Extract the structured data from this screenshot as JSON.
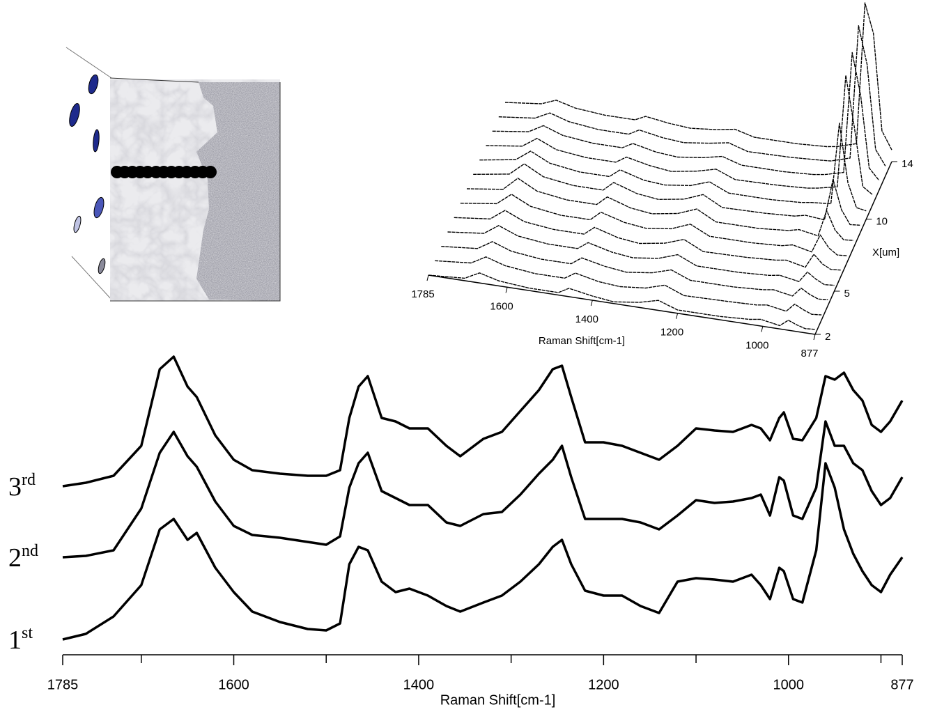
{
  "chart_data": [
    {
      "type": "line",
      "xlabel": "Raman Shift[cm-1]",
      "x": [
        1785,
        1760,
        1730,
        1700,
        1680,
        1665,
        1650,
        1640,
        1620,
        1600,
        1580,
        1550,
        1520,
        1500,
        1485,
        1475,
        1465,
        1455,
        1440,
        1425,
        1410,
        1390,
        1370,
        1355,
        1330,
        1310,
        1290,
        1270,
        1255,
        1245,
        1235,
        1220,
        1200,
        1180,
        1160,
        1140,
        1120,
        1100,
        1080,
        1060,
        1040,
        1030,
        1020,
        1010,
        1005,
        995,
        985,
        970,
        960,
        950,
        940,
        930,
        920,
        910,
        900,
        890,
        877
      ],
      "xlim": [
        1785,
        877
      ],
      "xticks": [
        1785,
        1600,
        1400,
        1200,
        1000,
        877
      ],
      "xminorticks": [
        1700,
        1500,
        1300,
        1100,
        900
      ],
      "ylim": [
        0,
        440
      ],
      "series": [
        {
          "name": "3rd",
          "color": "#000000",
          "values": [
            242,
            247,
            257,
            300,
            410,
            428,
            385,
            370,
            315,
            280,
            265,
            260,
            257,
            257,
            265,
            340,
            385,
            400,
            340,
            335,
            325,
            325,
            300,
            285,
            310,
            320,
            350,
            380,
            410,
            415,
            370,
            305,
            305,
            300,
            290,
            280,
            300,
            325,
            322,
            320,
            330,
            325,
            308,
            340,
            348,
            310,
            308,
            340,
            400,
            395,
            405,
            380,
            365,
            330,
            320,
            335,
            365
          ]
        },
        {
          "name": "2nd",
          "color": "#000000",
          "values": [
            140,
            142,
            150,
            210,
            290,
            320,
            285,
            270,
            220,
            185,
            172,
            168,
            162,
            158,
            170,
            240,
            275,
            290,
            235,
            225,
            215,
            215,
            190,
            185,
            202,
            205,
            230,
            260,
            280,
            300,
            255,
            195,
            195,
            195,
            190,
            180,
            200,
            222,
            218,
            220,
            225,
            230,
            200,
            255,
            250,
            200,
            195,
            240,
            335,
            300,
            300,
            275,
            265,
            235,
            215,
            225,
            255
          ]
        },
        {
          "name": "1st",
          "color": "#000000",
          "values": [
            22,
            30,
            55,
            100,
            180,
            195,
            165,
            175,
            125,
            90,
            62,
            47,
            37,
            35,
            45,
            130,
            155,
            150,
            105,
            90,
            95,
            85,
            70,
            62,
            75,
            85,
            105,
            130,
            155,
            165,
            130,
            92,
            85,
            85,
            70,
            60,
            105,
            110,
            108,
            105,
            115,
            100,
            80,
            125,
            120,
            80,
            75,
            150,
            275,
            240,
            180,
            145,
            120,
            100,
            90,
            115,
            140
          ]
        }
      ]
    },
    {
      "type": "waterfall",
      "xlabel": "Raman Shift[cm-1]",
      "ylabel": "X[um]",
      "x": [
        1785,
        1700,
        1665,
        1620,
        1550,
        1480,
        1455,
        1400,
        1350,
        1290,
        1245,
        1200,
        1100,
        1030,
        1005,
        960,
        940,
        920,
        900,
        877
      ],
      "xlim": [
        1785,
        877
      ],
      "xticks": [
        1785,
        1600,
        1400,
        1200,
        1000,
        877
      ],
      "ylim": [
        2,
        14
      ],
      "yticks": [
        2,
        5,
        10,
        14
      ],
      "zlim": [
        0,
        100
      ],
      "color": "#000000",
      "series": [
        {
          "position": 2,
          "values": [
            0,
            3,
            12,
            6,
            3,
            3,
            10,
            5,
            2,
            6,
            12,
            4,
            4,
            6,
            8,
            4,
            12,
            8,
            5,
            6
          ]
        },
        {
          "position": 3,
          "values": [
            0,
            4,
            14,
            7,
            3,
            3,
            11,
            5,
            3,
            6,
            13,
            4,
            5,
            6,
            8,
            4,
            14,
            9,
            5,
            6
          ]
        },
        {
          "position": 4,
          "values": [
            0,
            4,
            15,
            7,
            3,
            3,
            12,
            6,
            3,
            7,
            14,
            5,
            5,
            7,
            9,
            5,
            16,
            10,
            6,
            7
          ]
        },
        {
          "position": 5,
          "values": [
            0,
            5,
            17,
            8,
            4,
            4,
            13,
            6,
            3,
            7,
            15,
            5,
            5,
            7,
            9,
            5,
            18,
            11,
            6,
            7
          ]
        },
        {
          "position": 6,
          "values": [
            0,
            5,
            18,
            8,
            4,
            4,
            14,
            6,
            3,
            8,
            16,
            5,
            6,
            8,
            10,
            5,
            22,
            12,
            7,
            8
          ]
        },
        {
          "position": 7,
          "values": [
            0,
            6,
            20,
            9,
            4,
            4,
            15,
            7,
            4,
            8,
            17,
            6,
            6,
            8,
            11,
            6,
            28,
            14,
            7,
            8
          ]
        },
        {
          "position": 8,
          "values": [
            0,
            6,
            22,
            10,
            5,
            5,
            16,
            7,
            4,
            9,
            18,
            6,
            6,
            9,
            12,
            8,
            40,
            18,
            8,
            9
          ]
        },
        {
          "position": 9,
          "values": [
            0,
            7,
            22,
            10,
            5,
            5,
            16,
            7,
            4,
            9,
            18,
            6,
            7,
            9,
            12,
            10,
            60,
            25,
            9,
            10
          ]
        },
        {
          "position": 10,
          "values": [
            0,
            7,
            20,
            9,
            4,
            4,
            14,
            6,
            4,
            8,
            16,
            6,
            6,
            8,
            10,
            12,
            110,
            40,
            12,
            10
          ]
        },
        {
          "position": 11,
          "values": [
            0,
            6,
            18,
            8,
            4,
            4,
            12,
            6,
            3,
            8,
            14,
            5,
            6,
            8,
            10,
            15,
            150,
            90,
            20,
            12
          ]
        },
        {
          "position": 12,
          "values": [
            0,
            6,
            16,
            8,
            4,
            4,
            11,
            5,
            3,
            7,
            12,
            5,
            5,
            7,
            9,
            15,
            160,
            110,
            25,
            12
          ]
        },
        {
          "position": 13,
          "values": [
            0,
            5,
            14,
            7,
            3,
            3,
            10,
            5,
            3,
            7,
            11,
            4,
            5,
            7,
            8,
            15,
            175,
            130,
            30,
            12
          ]
        },
        {
          "position": 14,
          "values": [
            0,
            5,
            12,
            6,
            3,
            3,
            9,
            5,
            3,
            6,
            10,
            4,
            4,
            6,
            8,
            15,
            185,
            150,
            35,
            14
          ]
        }
      ]
    }
  ]
}
